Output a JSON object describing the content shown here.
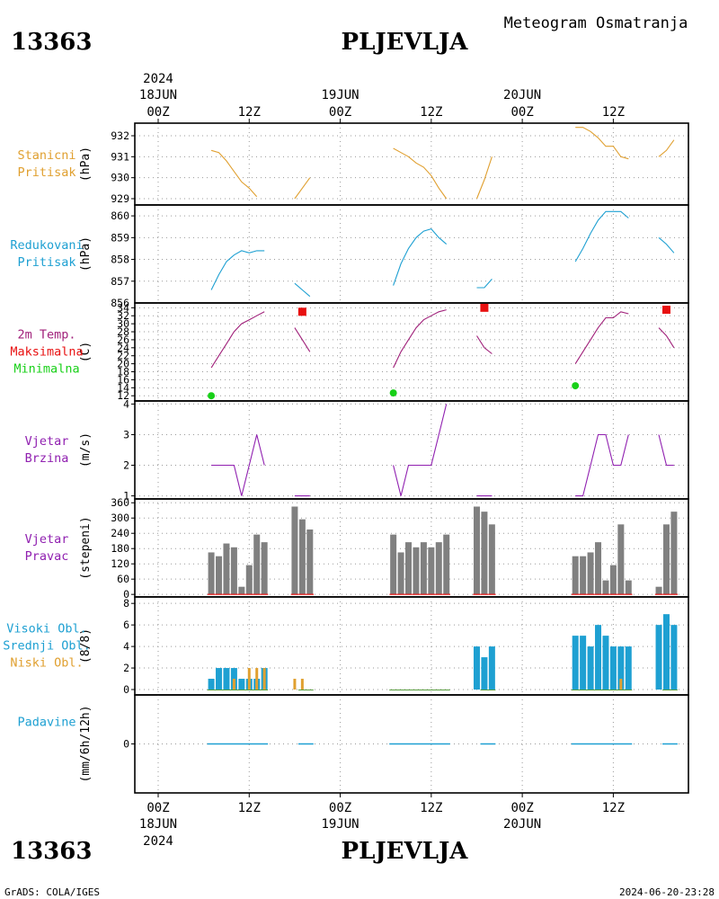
{
  "header": {
    "station_id": "13363",
    "station_name": "PLJEVLJA",
    "product": "Meteogram Osmatranja",
    "footer_left": "GrADS: COLA/IGES",
    "footer_right": "2024-06-20-23:28"
  },
  "time_axis": {
    "year": "2024",
    "labels": [
      {
        "hour": "00Z",
        "day": "18JUN"
      },
      {
        "hour": "12Z",
        "day": ""
      },
      {
        "hour": "00Z",
        "day": "19JUN"
      },
      {
        "hour": "12Z",
        "day": ""
      },
      {
        "hour": "00Z",
        "day": "20JUN"
      },
      {
        "hour": "12Z",
        "day": ""
      }
    ]
  },
  "colors": {
    "pressure": "#e0a030",
    "reduced": "#1ea0d2",
    "temp_line": "#a0207a",
    "max": "#e81010",
    "min": "#18d018",
    "wind": "#9020b0",
    "bars_gray": "#808080",
    "cloud_high": "#1ea0d2",
    "cloud_low": "#e0a030",
    "label_precip": "#1ea0d2",
    "label_clouds_high": "#1ea0d2",
    "label_clouds_mid": "#1ea0d2",
    "label_clouds_low": "#e0a030"
  },
  "chart_data": [
    {
      "type": "line",
      "label_lines": [
        "Stanicni",
        "Pritisak"
      ],
      "unit": "(hPa)",
      "yticks": [
        929,
        930,
        931,
        932
      ],
      "ylim": [
        928.7,
        932.6
      ],
      "segments": [
        [
          [
            7,
            931.3
          ],
          [
            8,
            931.2
          ],
          [
            9,
            930.8
          ],
          [
            10,
            930.3
          ],
          [
            11,
            929.8
          ],
          [
            12,
            929.5
          ],
          [
            13,
            929.1
          ]
        ],
        [
          [
            18,
            929.0
          ],
          [
            19,
            929.5
          ],
          [
            20,
            930.0
          ]
        ],
        [
          [
            31,
            931.4
          ],
          [
            32,
            931.2
          ],
          [
            33,
            931.0
          ],
          [
            34,
            930.7
          ],
          [
            35,
            930.5
          ],
          [
            36,
            930.1
          ],
          [
            37,
            929.5
          ],
          [
            38,
            929.0
          ]
        ],
        [
          [
            42,
            929.0
          ],
          [
            43,
            929.9
          ],
          [
            44,
            931.0
          ]
        ],
        [
          [
            55,
            932.4
          ],
          [
            56,
            932.4
          ],
          [
            57,
            932.2
          ],
          [
            58,
            931.9
          ],
          [
            59,
            931.5
          ],
          [
            60,
            931.5
          ],
          [
            61,
            931.0
          ],
          [
            62,
            930.9
          ]
        ],
        [
          [
            66,
            931.0
          ],
          [
            67,
            931.3
          ],
          [
            68,
            931.8
          ]
        ]
      ]
    },
    {
      "type": "line",
      "label_lines": [
        "Redukovani",
        "Pritisak"
      ],
      "unit": "(hPa)",
      "yticks": [
        857,
        858,
        859,
        860
      ],
      "ylim": [
        856.0,
        860.5
      ],
      "clipped_tick": "856",
      "segments": [
        [
          [
            7,
            856.6
          ],
          [
            8,
            857.3
          ],
          [
            9,
            857.9
          ],
          [
            10,
            858.2
          ],
          [
            11,
            858.4
          ],
          [
            12,
            858.3
          ],
          [
            13,
            858.4
          ],
          [
            14,
            858.4
          ]
        ],
        [
          [
            18,
            856.9
          ],
          [
            19,
            856.6
          ],
          [
            20,
            856.3
          ]
        ],
        [
          [
            31,
            856.8
          ],
          [
            32,
            857.8
          ],
          [
            33,
            858.5
          ],
          [
            34,
            859.0
          ],
          [
            35,
            859.3
          ],
          [
            36,
            859.4
          ],
          [
            37,
            859.0
          ],
          [
            38,
            858.7
          ]
        ],
        [
          [
            42,
            856.7
          ],
          [
            43,
            856.7
          ],
          [
            44,
            857.1
          ]
        ],
        [
          [
            55,
            857.9
          ],
          [
            56,
            858.5
          ],
          [
            57,
            859.2
          ],
          [
            58,
            859.8
          ],
          [
            59,
            860.2
          ],
          [
            60,
            860.2
          ],
          [
            61,
            860.2
          ],
          [
            62,
            859.9
          ]
        ],
        [
          [
            66,
            859.0
          ],
          [
            67,
            858.7
          ],
          [
            68,
            858.3
          ]
        ]
      ]
    },
    {
      "type": "line",
      "label_lines": [
        "2m Temp.",
        "Maksimalna",
        "Minimalna"
      ],
      "unit": "(C)",
      "yticks": [
        12,
        14,
        16,
        18,
        20,
        22,
        24,
        26,
        28,
        30,
        32,
        34
      ],
      "ylim": [
        10.7,
        35.2
      ],
      "segments": [
        [
          [
            7,
            19
          ],
          [
            8,
            22
          ],
          [
            9,
            25
          ],
          [
            10,
            28
          ],
          [
            11,
            30
          ],
          [
            12,
            31
          ],
          [
            13,
            32
          ],
          [
            14,
            33
          ]
        ],
        [
          [
            18,
            29
          ],
          [
            19,
            26
          ],
          [
            20,
            23
          ]
        ],
        [
          [
            31,
            19
          ],
          [
            32,
            23
          ],
          [
            33,
            26
          ],
          [
            34,
            29
          ],
          [
            35,
            31
          ],
          [
            36,
            32
          ],
          [
            37,
            33
          ],
          [
            38,
            33.5
          ]
        ],
        [
          [
            42,
            27
          ],
          [
            43,
            24
          ],
          [
            44,
            22.5
          ]
        ],
        [
          [
            55,
            20
          ],
          [
            56,
            23
          ],
          [
            57,
            26
          ],
          [
            58,
            29
          ],
          [
            59,
            31.5
          ],
          [
            60,
            31.5
          ],
          [
            61,
            33
          ],
          [
            62,
            32.5
          ]
        ],
        [
          [
            66,
            29
          ],
          [
            67,
            27
          ],
          [
            68,
            24
          ]
        ]
      ],
      "max_points": [
        [
          19,
          33
        ],
        [
          43,
          34
        ],
        [
          67,
          33.5
        ]
      ],
      "min_points": [
        [
          7,
          12
        ],
        [
          31,
          12.7
        ],
        [
          55,
          14.5
        ]
      ]
    },
    {
      "type": "line",
      "label_lines": [
        "Vjetar",
        "Brzina"
      ],
      "unit": "(m/s)",
      "yticks": [
        1,
        2,
        3,
        4
      ],
      "ylim": [
        0.9,
        4.1
      ],
      "segments": [
        [
          [
            7,
            2
          ],
          [
            8,
            2
          ],
          [
            9,
            2
          ],
          [
            10,
            2
          ],
          [
            11,
            1
          ],
          [
            12,
            2
          ],
          [
            13,
            3
          ],
          [
            14,
            2
          ]
        ],
        [
          [
            18,
            1
          ],
          [
            19,
            1
          ],
          [
            20,
            1
          ]
        ],
        [
          [
            31,
            2
          ],
          [
            32,
            1
          ],
          [
            33,
            2
          ],
          [
            34,
            2
          ],
          [
            35,
            2
          ],
          [
            36,
            2
          ],
          [
            37,
            3
          ],
          [
            38,
            4
          ]
        ],
        [
          [
            42,
            1
          ],
          [
            43,
            1
          ],
          [
            44,
            1
          ]
        ],
        [
          [
            55,
            1
          ],
          [
            56,
            1
          ],
          [
            57,
            2
          ],
          [
            58,
            3
          ],
          [
            59,
            3
          ],
          [
            60,
            2
          ],
          [
            61,
            2
          ],
          [
            62,
            3
          ]
        ],
        [
          [
            66,
            3
          ],
          [
            67,
            2
          ],
          [
            68,
            2
          ]
        ]
      ]
    },
    {
      "type": "bar",
      "label_lines": [
        "Vjetar",
        "Pravac"
      ],
      "unit": "(stepeni)",
      "yticks": [
        0,
        60,
        120,
        180,
        240,
        300,
        360
      ],
      "ylim": [
        -10,
        375
      ],
      "points": [
        [
          7,
          165
        ],
        [
          8,
          150
        ],
        [
          9,
          200
        ],
        [
          10,
          185
        ],
        [
          11,
          30
        ],
        [
          12,
          115
        ],
        [
          13,
          235
        ],
        [
          14,
          205
        ],
        [
          18,
          345
        ],
        [
          19,
          295
        ],
        [
          20,
          255
        ],
        [
          31,
          235
        ],
        [
          32,
          165
        ],
        [
          33,
          205
        ],
        [
          34,
          185
        ],
        [
          35,
          205
        ],
        [
          36,
          185
        ],
        [
          37,
          205
        ],
        [
          38,
          235
        ],
        [
          42,
          345
        ],
        [
          43,
          325
        ],
        [
          44,
          275
        ],
        [
          55,
          150
        ],
        [
          56,
          150
        ],
        [
          57,
          165
        ],
        [
          58,
          205
        ],
        [
          59,
          55
        ],
        [
          60,
          115
        ],
        [
          61,
          275
        ],
        [
          62,
          55
        ],
        [
          66,
          30
        ],
        [
          67,
          275
        ],
        [
          68,
          325
        ]
      ]
    },
    {
      "type": "bar",
      "label_lines": [
        "Visoki Obl.",
        "Srednji Obl.",
        "Niski Obl."
      ],
      "unit": "(8/8)",
      "yticks": [
        0,
        2,
        4,
        6,
        8
      ],
      "ylim": [
        -0.5,
        8.6
      ],
      "high": [
        [
          7,
          1
        ],
        [
          8,
          2
        ],
        [
          9,
          2
        ],
        [
          10,
          2
        ],
        [
          11,
          1
        ],
        [
          12,
          1
        ],
        [
          13,
          1
        ],
        [
          14,
          2
        ],
        [
          42,
          4
        ],
        [
          43,
          3
        ],
        [
          44,
          4
        ],
        [
          55,
          5
        ],
        [
          56,
          5
        ],
        [
          57,
          4
        ],
        [
          58,
          6
        ],
        [
          59,
          5
        ],
        [
          60,
          4
        ],
        [
          61,
          4
        ],
        [
          62,
          4
        ],
        [
          66,
          6
        ],
        [
          67,
          7
        ],
        [
          68,
          6
        ]
      ],
      "low": [
        [
          10,
          1
        ],
        [
          12,
          2
        ],
        [
          13,
          2
        ],
        [
          14,
          2
        ],
        [
          18,
          1
        ],
        [
          19,
          1
        ],
        [
          61,
          1
        ]
      ]
    },
    {
      "type": "bar",
      "label_lines": [
        "Padavine"
      ],
      "unit": "(mm/6h/12h)",
      "yticks": [
        0
      ],
      "ylim": [
        -1,
        1
      ],
      "points": []
    }
  ]
}
